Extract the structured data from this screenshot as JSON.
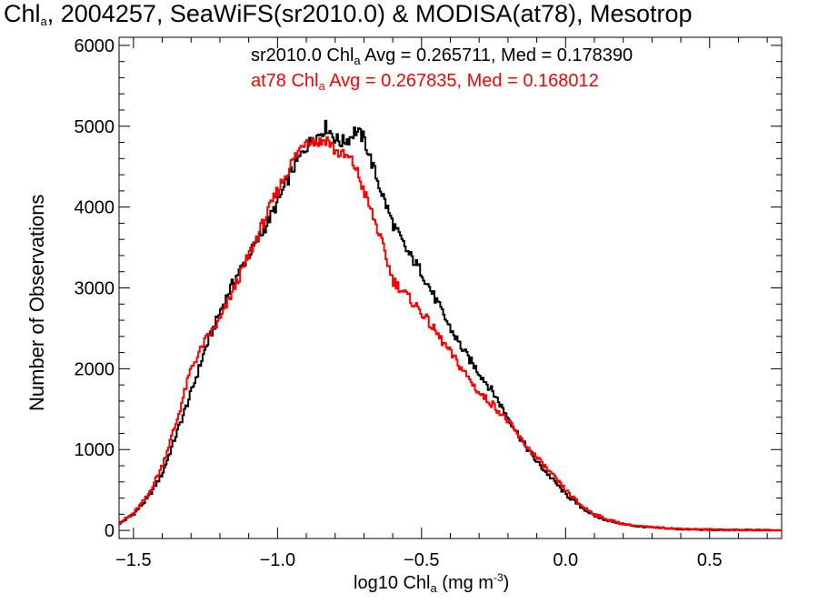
{
  "chart_data": {
    "type": "line",
    "title": {
      "pre": "Chl",
      "sub": "a",
      "post": ", 2004257, SeaWiFS(sr2010.0) & MODISA(at78), Mesotrop"
    },
    "xlabel": {
      "pre": "log10 Chl",
      "sub": "a",
      "mid": " (mg m",
      "sup": "-3",
      "post": ")"
    },
    "ylabel": "Number of Observations",
    "xlim": [
      -1.55,
      0.75
    ],
    "ylim": [
      -100,
      6100
    ],
    "xticks": [
      -1.5,
      -1.0,
      -0.5,
      0.0,
      0.5
    ],
    "xtick_labels": [
      "−1.5",
      "−1.0",
      "−0.5",
      "0.0",
      "0.5"
    ],
    "yticks": [
      0,
      1000,
      2000,
      3000,
      4000,
      5000,
      6000
    ],
    "ytick_labels": [
      "0",
      "1000",
      "2000",
      "3000",
      "4000",
      "5000",
      "6000"
    ],
    "grid": false,
    "legend_position": "top",
    "series": [
      {
        "name": "sr2010.0",
        "color": "#000000",
        "legend": {
          "pre": "sr2010.0 Chl",
          "sub": "a",
          "post": " Avg = 0.265711, Med = 0.178390"
        },
        "x": [
          -1.55,
          -1.5,
          -1.45,
          -1.4,
          -1.35,
          -1.3,
          -1.25,
          -1.2,
          -1.15,
          -1.1,
          -1.05,
          -1.0,
          -0.95,
          -0.9,
          -0.85,
          -0.83,
          -0.8,
          -0.78,
          -0.75,
          -0.73,
          -0.7,
          -0.65,
          -0.6,
          -0.55,
          -0.5,
          -0.45,
          -0.4,
          -0.35,
          -0.3,
          -0.25,
          -0.2,
          -0.15,
          -0.1,
          -0.05,
          0.0,
          0.05,
          0.1,
          0.15,
          0.2,
          0.25,
          0.3,
          0.35,
          0.4,
          0.5,
          0.6,
          0.7,
          0.75
        ],
        "y": [
          80,
          200,
          400,
          700,
          1200,
          1700,
          2250,
          2700,
          3100,
          3400,
          3700,
          4050,
          4450,
          4750,
          4920,
          5000,
          4850,
          4800,
          4850,
          4950,
          4850,
          4300,
          3800,
          3450,
          3200,
          2850,
          2500,
          2200,
          1950,
          1700,
          1400,
          1100,
          850,
          650,
          450,
          300,
          180,
          120,
          80,
          50,
          35,
          25,
          15,
          8,
          4,
          2,
          1
        ]
      },
      {
        "name": "at78",
        "color": "#ff0000",
        "legend": {
          "pre": "at78 Chl",
          "sub": "a",
          "post": " Avg = 0.267835, Med = 0.168012"
        },
        "x": [
          -1.55,
          -1.5,
          -1.45,
          -1.4,
          -1.35,
          -1.3,
          -1.25,
          -1.2,
          -1.15,
          -1.1,
          -1.05,
          -1.0,
          -0.95,
          -0.9,
          -0.85,
          -0.83,
          -0.8,
          -0.78,
          -0.75,
          -0.73,
          -0.7,
          -0.65,
          -0.6,
          -0.55,
          -0.5,
          -0.45,
          -0.4,
          -0.35,
          -0.3,
          -0.25,
          -0.2,
          -0.15,
          -0.1,
          -0.05,
          0.0,
          0.05,
          0.1,
          0.15,
          0.2,
          0.25,
          0.3,
          0.35,
          0.4,
          0.5,
          0.6,
          0.7,
          0.75
        ],
        "y": [
          90,
          210,
          430,
          800,
          1350,
          2000,
          2350,
          2600,
          3000,
          3400,
          3800,
          4200,
          4550,
          4850,
          4800,
          4850,
          4700,
          4650,
          4600,
          4500,
          4200,
          3700,
          3100,
          2900,
          2700,
          2450,
          2200,
          1950,
          1700,
          1550,
          1350,
          1100,
          900,
          700,
          500,
          320,
          200,
          130,
          80,
          55,
          40,
          30,
          20,
          10,
          5,
          2,
          1
        ]
      }
    ]
  }
}
